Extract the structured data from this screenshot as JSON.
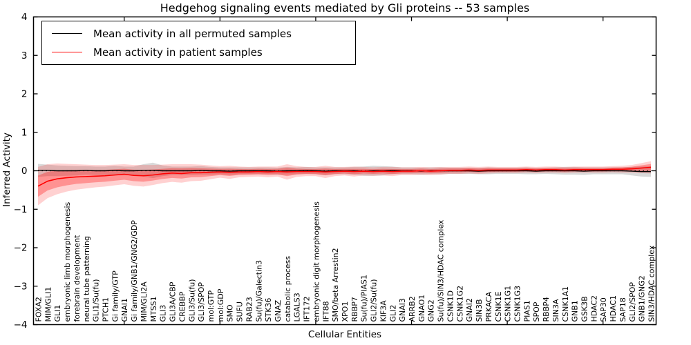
{
  "chart_data": {
    "type": "line",
    "title": "Hedgehog signaling events mediated by Gli proteins -- 53 samples",
    "xlabel": "Cellular Entities",
    "ylabel": "Inferred Activity",
    "sample_count": "53",
    "ylim": [
      -4,
      4
    ],
    "yticks": [
      4,
      3,
      2,
      1,
      0,
      -1,
      -2,
      -3,
      -4
    ],
    "grid": false,
    "zero_line": true,
    "legend_position": "upper left",
    "categories": [
      "FOXA2",
      "MIM/GLI1",
      "GLI1",
      "embryonic limb morphogenesis",
      "forebrain development",
      "neural tube patterning",
      "GLI1/Su(fu)",
      "PTCH1",
      "Gi family/GTP",
      "GNAI1",
      "Gi family/GNB1/GNG2/GDP",
      "MIM/GLI2A",
      "MTSS1",
      "GLI3",
      "GLI3A/CBP",
      "CREBBP",
      "GLI3/Su(fu)",
      "GLI3/SPOP",
      "mol:GTP",
      "mol:GDP",
      "SMO",
      "SUFU",
      "RAB23",
      "Su(fu)/Galectin3",
      "STK36",
      "GNAZ",
      "catabolic process",
      "LGALS3",
      "IFT172",
      "embryonic digit morphogenesis",
      "IFT88",
      "SMO/beta Arrestin2",
      "XPO1",
      "RBBP7",
      "Su(fu)/PIAS1",
      "GLI2/Su(fu)",
      "KIF3A",
      "GLI2",
      "GNAI3",
      "ARRB2",
      "GNAO1",
      "GNG2",
      "Su(fu)/SIN3/HDAC complex",
      "CSNK1D",
      "CSNK1G2",
      "GNAI2",
      "SIN3B",
      "PRKACA",
      "CSNK1E",
      "CSNK1G1",
      "CSNK1G3",
      "PIAS1",
      "SPOP",
      "RBBP4",
      "SIN3A",
      "CSNK1A1",
      "GNB1",
      "GSK3B",
      "HDAC2",
      "SAP30",
      "HDAC1",
      "SAP18",
      "GLI2/SPOP",
      "GNB1/GNG2",
      "SIN3/HDAC complex"
    ],
    "series": [
      {
        "name": "Mean activity in all permuted samples",
        "color": "#000000",
        "band_color": "rgba(0,0,0,0.15)",
        "values": [
          0.01,
          0.01,
          0.0,
          0.0,
          0.0,
          0.01,
          0.0,
          0.0,
          0.01,
          0.0,
          0.0,
          0.01,
          0.01,
          0.0,
          0.0,
          0.0,
          0.0,
          0.01,
          0.0,
          0.0,
          -0.01,
          0.0,
          0.0,
          0.0,
          0.0,
          -0.01,
          0.0,
          0.0,
          0.01,
          0.0,
          -0.01,
          0.0,
          0.0,
          0.0,
          -0.01,
          0.0,
          0.0,
          0.01,
          0.0,
          0.0,
          -0.01,
          0.0,
          0.0,
          0.0,
          0.0,
          0.0,
          -0.01,
          0.0,
          0.0,
          0.0,
          0.0,
          0.0,
          -0.01,
          0.0,
          0.0,
          0.0,
          0.0,
          -0.01,
          0.0,
          0.0,
          0.0,
          0.0,
          -0.01,
          -0.02,
          -0.02
        ],
        "band": [
          0.17,
          0.15,
          0.14,
          0.13,
          0.12,
          0.11,
          0.11,
          0.11,
          0.12,
          0.11,
          0.11,
          0.16,
          0.2,
          0.14,
          0.11,
          0.11,
          0.11,
          0.11,
          0.1,
          0.09,
          0.1,
          0.09,
          0.09,
          0.09,
          0.09,
          0.09,
          0.1,
          0.09,
          0.09,
          0.09,
          0.1,
          0.09,
          0.09,
          0.1,
          0.12,
          0.13,
          0.12,
          0.1,
          0.09,
          0.09,
          0.09,
          0.09,
          0.09,
          0.08,
          0.08,
          0.08,
          0.08,
          0.09,
          0.08,
          0.08,
          0.08,
          0.09,
          0.08,
          0.08,
          0.09,
          0.1,
          0.1,
          0.1,
          0.09,
          0.09,
          0.09,
          0.09,
          0.11,
          0.13,
          0.14
        ]
      },
      {
        "name": "Mean activity in patient samples",
        "color": "#ff0000",
        "band_color": "rgba(255,0,0,0.18)",
        "band_inner_color": "rgba(255,0,0,0.30)",
        "values": [
          -0.4,
          -0.27,
          -0.21,
          -0.18,
          -0.16,
          -0.15,
          -0.14,
          -0.13,
          -0.11,
          -0.09,
          -0.12,
          -0.13,
          -0.11,
          -0.08,
          -0.06,
          -0.07,
          -0.05,
          -0.05,
          -0.04,
          -0.03,
          -0.04,
          -0.03,
          -0.03,
          -0.02,
          -0.03,
          -0.02,
          -0.03,
          -0.02,
          -0.02,
          -0.02,
          -0.03,
          -0.02,
          -0.01,
          -0.02,
          -0.01,
          -0.02,
          -0.01,
          -0.02,
          -0.01,
          -0.01,
          0.0,
          -0.01,
          0.0,
          0.01,
          0.01,
          0.02,
          0.01,
          0.02,
          0.02,
          0.02,
          0.02,
          0.03,
          0.02,
          0.03,
          0.03,
          0.02,
          0.03,
          0.03,
          0.03,
          0.03,
          0.04,
          0.04,
          0.05,
          0.07,
          0.09
        ],
        "band": [
          0.5,
          0.44,
          0.4,
          0.36,
          0.33,
          0.31,
          0.29,
          0.28,
          0.27,
          0.26,
          0.27,
          0.28,
          0.26,
          0.24,
          0.23,
          0.24,
          0.22,
          0.21,
          0.18,
          0.15,
          0.17,
          0.14,
          0.13,
          0.13,
          0.14,
          0.13,
          0.2,
          0.14,
          0.12,
          0.12,
          0.16,
          0.12,
          0.11,
          0.13,
          0.11,
          0.11,
          0.11,
          0.12,
          0.1,
          0.1,
          0.1,
          0.1,
          0.1,
          0.09,
          0.09,
          0.09,
          0.09,
          0.09,
          0.08,
          0.08,
          0.08,
          0.08,
          0.08,
          0.08,
          0.08,
          0.08,
          0.08,
          0.08,
          0.08,
          0.08,
          0.08,
          0.09,
          0.1,
          0.13,
          0.16
        ]
      }
    ]
  }
}
